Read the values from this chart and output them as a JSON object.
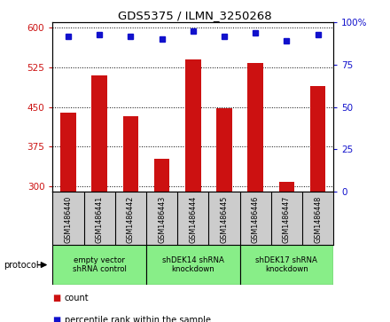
{
  "title": "GDS5375 / ILMN_3250268",
  "samples": [
    "GSM1486440",
    "GSM1486441",
    "GSM1486442",
    "GSM1486443",
    "GSM1486444",
    "GSM1486445",
    "GSM1486446",
    "GSM1486447",
    "GSM1486448"
  ],
  "counts": [
    440,
    510,
    432,
    352,
    540,
    448,
    533,
    308,
    490
  ],
  "percentile_ranks": [
    92,
    93,
    92,
    90,
    95,
    92,
    94,
    89,
    93
  ],
  "ylim_left": [
    290,
    610
  ],
  "ylim_right": [
    0,
    100
  ],
  "yticks_left": [
    300,
    375,
    450,
    525,
    600
  ],
  "yticks_right": [
    0,
    25,
    50,
    75,
    100
  ],
  "bar_color": "#CC1111",
  "dot_color": "#1111CC",
  "bar_width": 0.5,
  "groups": [
    {
      "label": "empty vector\nshRNA control",
      "start": 0,
      "end": 3
    },
    {
      "label": "shDEK14 shRNA\nknockdown",
      "start": 3,
      "end": 6
    },
    {
      "label": "shDEK17 shRNA\nknockdown",
      "start": 6,
      "end": 9
    }
  ],
  "legend_count_label": "count",
  "legend_pct_label": "percentile rank within the sample",
  "protocol_label": "protocol",
  "group_bg_color": "#88ee88",
  "tick_bg_color": "#cccccc",
  "plot_bg": "#ffffff"
}
